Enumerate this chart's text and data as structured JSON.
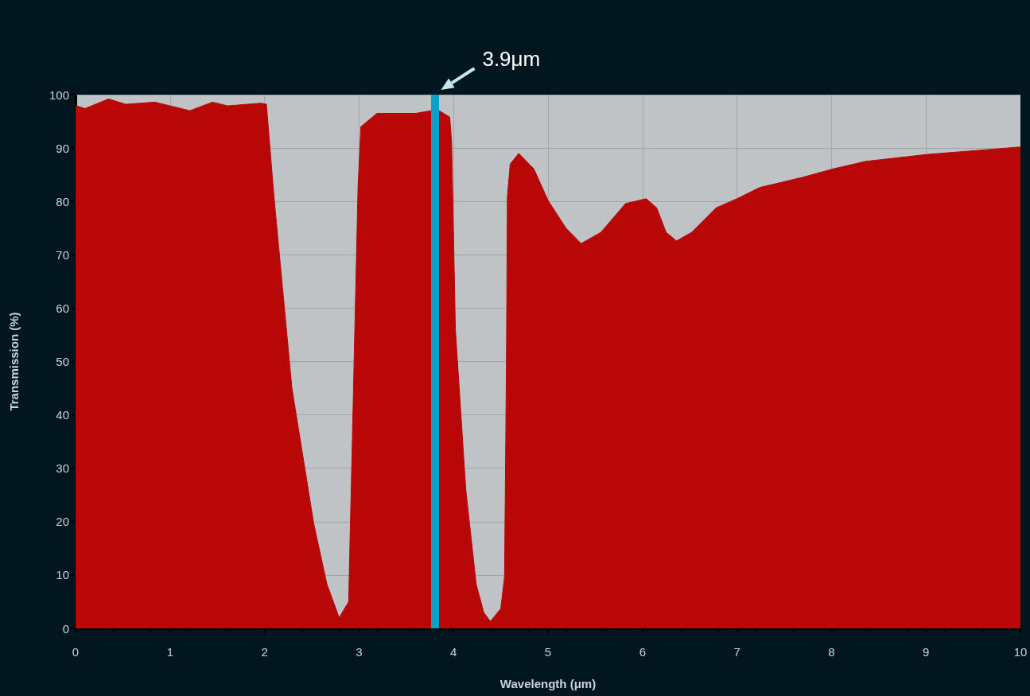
{
  "chart_data": {
    "type": "area",
    "xlabel": "Wavelength (μm)",
    "ylabel": "Transmission (%)",
    "x": [
      0,
      0.01,
      0.1,
      0.35,
      0.53,
      0.84,
      1.21,
      1.45,
      1.61,
      1.96,
      2.02,
      2.1,
      2.29,
      2.52,
      2.66,
      2.79,
      2.89,
      2.93,
      2.99,
      3.02,
      3.19,
      3.6,
      3.83,
      3.96,
      3.98,
      4.02,
      4.13,
      4.24,
      4.32,
      4.39,
      4.5,
      4.54,
      4.56,
      4.57,
      4.6,
      4.69,
      4.85,
      5.0,
      5.19,
      5.35,
      5.56,
      5.82,
      6.04,
      6.15,
      6.25,
      6.36,
      6.52,
      6.78,
      7.0,
      7.24,
      7.69,
      8.02,
      8.36,
      9.01,
      10.0
    ],
    "series": [
      {
        "color": "#b90606",
        "values": [
          97.5,
          97.9,
          97.4,
          99.2,
          98.2,
          98.6,
          97.0,
          98.6,
          97.9,
          98.4,
          98.2,
          80.9,
          45,
          19.7,
          8.3,
          2,
          5,
          36,
          83,
          94,
          96.5,
          96.5,
          97.2,
          95.8,
          91,
          56,
          26,
          8.3,
          3,
          1.3,
          3.7,
          9.7,
          50,
          81,
          87,
          89,
          86.1,
          80.2,
          75,
          72.1,
          74.2,
          79.6,
          80.5,
          78.8,
          74.2,
          72.6,
          74.2,
          78.8,
          80.5,
          82.6,
          84.5,
          86.1,
          87.5,
          88.8,
          90.2
        ]
      }
    ],
    "xlim": [
      0,
      10
    ],
    "xticks": [
      0,
      1,
      2,
      3,
      4,
      5,
      6,
      7,
      8,
      9,
      10
    ],
    "ylim": [
      0,
      100
    ],
    "yticks": [
      0,
      10,
      20,
      30,
      40,
      50,
      60,
      70,
      80,
      90,
      100
    ],
    "grid": true,
    "marker": "none",
    "ref_lines": [
      {
        "axis": "x",
        "value": 3.8,
        "label": "3.9μm",
        "color": "#0aa0c8"
      }
    ]
  }
}
